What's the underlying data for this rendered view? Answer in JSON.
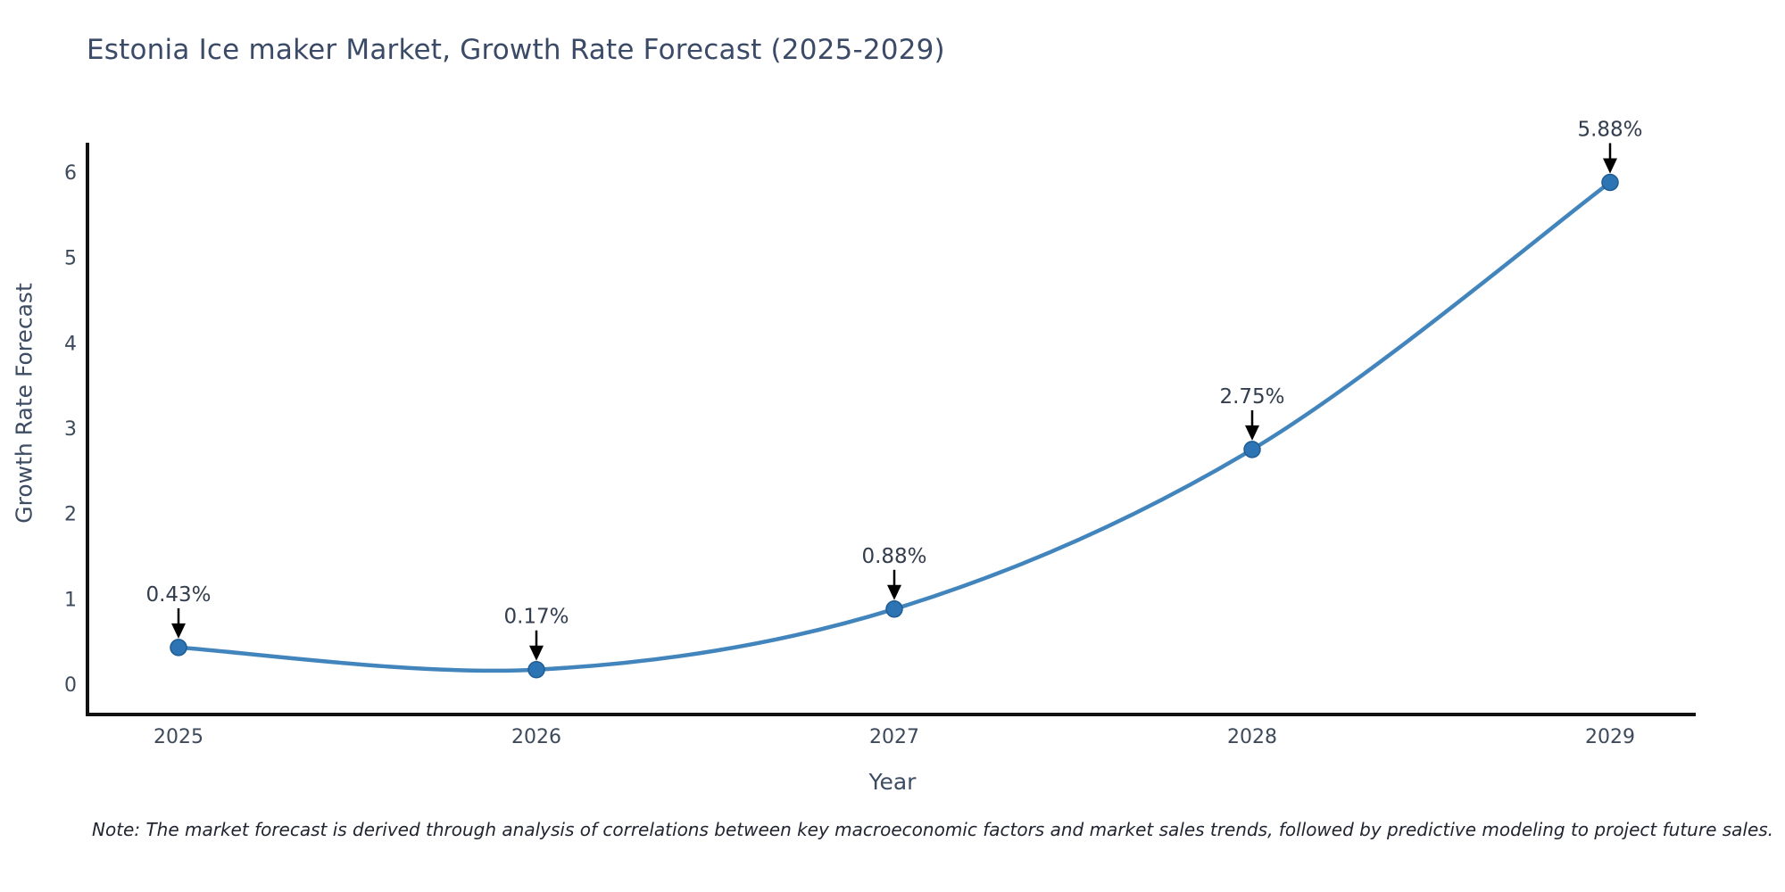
{
  "chart_data": {
    "type": "line",
    "title": "Estonia Ice maker Market, Growth Rate Forecast (2025-2029)",
    "xlabel": "Year",
    "ylabel": "Growth Rate Forecast",
    "x": [
      2025,
      2026,
      2027,
      2028,
      2029
    ],
    "series": [
      {
        "name": "Growth Rate Forecast",
        "values": [
          0.43,
          0.17,
          0.88,
          2.75,
          5.88
        ],
        "point_labels": [
          "0.43%",
          "0.17%",
          "0.88%",
          "2.75%",
          "5.88%"
        ]
      }
    ],
    "yticks": [
      0,
      1,
      2,
      3,
      4,
      5,
      6
    ],
    "ylim": [
      -0.35,
      6.7
    ],
    "grid": false,
    "legend": "none",
    "annotation_style": "black-down-arrows",
    "note": "Note: The market forecast is derived through analysis of correlations between key macroeconomic factors and market sales trends, followed by predictive modeling to project future sales.",
    "colors": {
      "line": "#4285bd",
      "marker_fill": "#2d74b4",
      "marker_edge": "#1f5c92",
      "axis": "#111111",
      "tick_text": "#3d4a5c",
      "annotation_text": "#323d4d",
      "arrow": "#000000",
      "title_text": "#3a4a67",
      "note_text": "#1f2430"
    }
  }
}
